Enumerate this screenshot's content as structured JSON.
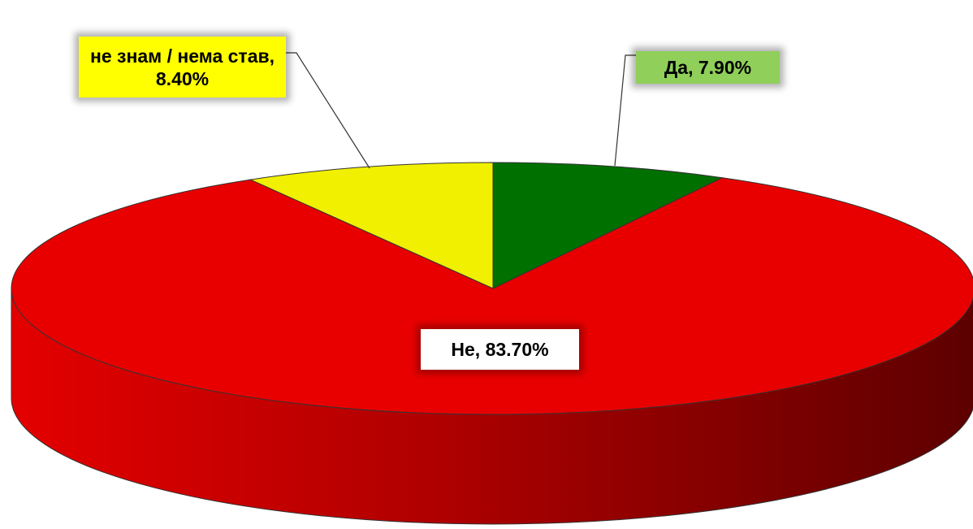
{
  "chart_data": {
    "type": "pie3d",
    "values": [
      7.9,
      83.7,
      8.4
    ],
    "value_labels": [
      "Да, 7.90%",
      "Не, 83.70%",
      "не знам / нема став, 8.40%"
    ],
    "colors": [
      "#007000",
      "#e80000",
      "#f0f000"
    ]
  }
}
